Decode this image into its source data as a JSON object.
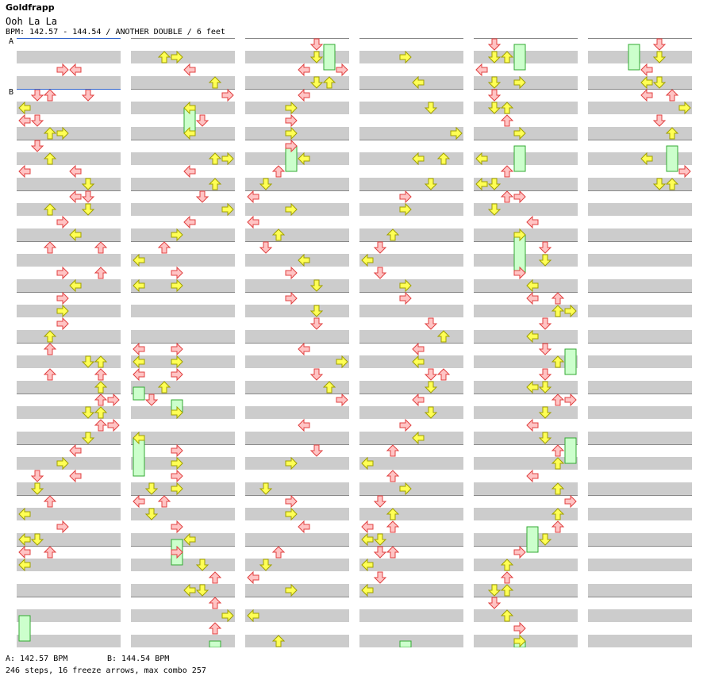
{
  "header": {
    "artist": "Goldfrapp",
    "song": "Ooh La La",
    "info": "BPM: 142.57 - 144.54 / ANOTHER DOUBLE / 6 feet"
  },
  "markers": {
    "a": "A",
    "b": "B"
  },
  "footer": {
    "bpm_a": "A: 142.57 BPM",
    "bpm_b": "B: 144.54 BPM",
    "stats": "246 steps, 16 freeze arrows, max combo 257"
  },
  "colors": {
    "note_red_fill": "#ffc4c4",
    "note_red_stroke": "#e04040",
    "note_yellow_fill": "#ffff55",
    "note_yellow_stroke": "#a0a000",
    "freeze_fill": "#ccffcc",
    "freeze_stroke": "#33aa33"
  },
  "chart": {
    "columns": 6,
    "rows_per_column": 48,
    "lanes": 8,
    "lane_dirs": [
      "left",
      "down",
      "up",
      "right",
      "left",
      "down",
      "up",
      "right"
    ],
    "notes": [
      [
        [
          2,
          3
        ],
        [
          2,
          4
        ],
        [
          4,
          2
        ],
        [
          4,
          5
        ],
        [
          4,
          1
        ],
        [
          5,
          0
        ],
        [
          6,
          0
        ],
        [
          6,
          1
        ],
        [
          7,
          2
        ],
        [
          7,
          3
        ],
        [
          8,
          1
        ],
        [
          9,
          2
        ],
        [
          10,
          4
        ],
        [
          10,
          0
        ],
        [
          11,
          5
        ],
        [
          11,
          5
        ],
        [
          12,
          5
        ],
        [
          12,
          4
        ],
        [
          13,
          5
        ],
        [
          13,
          2
        ],
        [
          14,
          3
        ],
        [
          15,
          4
        ],
        [
          16,
          2
        ],
        [
          16,
          6
        ],
        [
          18,
          3
        ],
        [
          18,
          6
        ],
        [
          19,
          4
        ],
        [
          20,
          3
        ],
        [
          21,
          3
        ],
        [
          22,
          3
        ],
        [
          23,
          2
        ],
        [
          24,
          2
        ],
        [
          25,
          5
        ],
        [
          25,
          6
        ],
        [
          26,
          2
        ],
        [
          26,
          6
        ],
        [
          27,
          6
        ],
        [
          28,
          7
        ],
        [
          28,
          6
        ],
        [
          29,
          5
        ],
        [
          29,
          6
        ],
        [
          30,
          7
        ],
        [
          30,
          6
        ],
        [
          31,
          5
        ],
        [
          32,
          4
        ],
        [
          33,
          3
        ],
        [
          34,
          4
        ],
        [
          34,
          1
        ],
        [
          35,
          1
        ],
        [
          36,
          2
        ],
        [
          37,
          0
        ],
        [
          38,
          3
        ],
        [
          39,
          0
        ],
        [
          39,
          1
        ],
        [
          40,
          0
        ],
        [
          40,
          2
        ],
        [
          41,
          0
        ]
      ],
      [
        [
          1,
          2
        ],
        [
          1,
          3
        ],
        [
          2,
          4
        ],
        [
          3,
          6
        ],
        [
          4,
          7
        ],
        [
          5,
          4
        ],
        [
          6,
          5
        ],
        [
          7,
          4
        ],
        [
          9,
          6
        ],
        [
          9,
          7
        ],
        [
          10,
          4
        ],
        [
          11,
          6
        ],
        [
          12,
          5
        ],
        [
          13,
          7
        ],
        [
          14,
          4
        ],
        [
          15,
          3
        ],
        [
          16,
          2
        ],
        [
          17,
          0
        ],
        [
          18,
          3
        ],
        [
          19,
          0
        ],
        [
          19,
          3
        ],
        [
          24,
          3
        ],
        [
          24,
          0
        ],
        [
          25,
          3
        ],
        [
          25,
          0
        ],
        [
          26,
          3
        ],
        [
          26,
          0
        ],
        [
          27,
          2
        ],
        [
          28,
          1
        ],
        [
          29,
          3
        ],
        [
          31,
          0
        ],
        [
          32,
          3
        ],
        [
          33,
          3
        ],
        [
          34,
          3
        ],
        [
          35,
          1
        ],
        [
          35,
          3
        ],
        [
          36,
          2
        ],
        [
          36,
          0
        ],
        [
          37,
          1
        ],
        [
          38,
          3
        ],
        [
          39,
          4
        ],
        [
          40,
          3
        ],
        [
          41,
          5
        ],
        [
          42,
          6
        ],
        [
          43,
          4
        ],
        [
          43,
          5
        ],
        [
          44,
          6
        ],
        [
          45,
          7
        ],
        [
          46,
          6
        ]
      ],
      [
        [
          0,
          5
        ],
        [
          1,
          5
        ],
        [
          2,
          4
        ],
        [
          2,
          7
        ],
        [
          3,
          5
        ],
        [
          3,
          6
        ],
        [
          4,
          4
        ],
        [
          5,
          3
        ],
        [
          6,
          3
        ],
        [
          7,
          3
        ],
        [
          8,
          3
        ],
        [
          9,
          4
        ],
        [
          10,
          2
        ],
        [
          11,
          1
        ],
        [
          12,
          0
        ],
        [
          13,
          3
        ],
        [
          14,
          0
        ],
        [
          15,
          2
        ],
        [
          16,
          1
        ],
        [
          17,
          4
        ],
        [
          18,
          3
        ],
        [
          19,
          5
        ],
        [
          20,
          3
        ],
        [
          21,
          5
        ],
        [
          22,
          5
        ],
        [
          24,
          4
        ],
        [
          25,
          7
        ],
        [
          26,
          5
        ],
        [
          27,
          6
        ],
        [
          28,
          7
        ],
        [
          30,
          4
        ],
        [
          32,
          5
        ],
        [
          33,
          3
        ],
        [
          35,
          1
        ],
        [
          36,
          3
        ],
        [
          37,
          3
        ],
        [
          38,
          4
        ],
        [
          40,
          2
        ],
        [
          41,
          1
        ],
        [
          42,
          0
        ],
        [
          43,
          3
        ],
        [
          45,
          0
        ],
        [
          47,
          2
        ]
      ],
      [
        [
          1,
          3
        ],
        [
          3,
          4
        ],
        [
          5,
          5
        ],
        [
          7,
          7
        ],
        [
          9,
          4
        ],
        [
          9,
          6
        ],
        [
          11,
          5
        ],
        [
          12,
          3
        ],
        [
          13,
          3
        ],
        [
          15,
          2
        ],
        [
          16,
          1
        ],
        [
          17,
          0
        ],
        [
          18,
          1
        ],
        [
          19,
          3
        ],
        [
          20,
          3
        ],
        [
          22,
          5
        ],
        [
          23,
          6
        ],
        [
          24,
          4
        ],
        [
          25,
          4
        ],
        [
          26,
          5
        ],
        [
          26,
          6
        ],
        [
          27,
          5
        ],
        [
          28,
          4
        ],
        [
          29,
          5
        ],
        [
          30,
          3
        ],
        [
          31,
          4
        ],
        [
          32,
          2
        ],
        [
          33,
          0
        ],
        [
          34,
          2
        ],
        [
          35,
          3
        ],
        [
          36,
          1
        ],
        [
          37,
          2
        ],
        [
          38,
          0
        ],
        [
          38,
          2
        ],
        [
          39,
          0
        ],
        [
          39,
          1
        ],
        [
          40,
          1
        ],
        [
          40,
          2
        ],
        [
          41,
          0
        ],
        [
          42,
          1
        ],
        [
          43,
          0
        ]
      ],
      [
        [
          0,
          1
        ],
        [
          1,
          1
        ],
        [
          1,
          2
        ],
        [
          2,
          0
        ],
        [
          3,
          1
        ],
        [
          3,
          3
        ],
        [
          4,
          1
        ],
        [
          5,
          1
        ],
        [
          5,
          2
        ],
        [
          6,
          2
        ],
        [
          7,
          3
        ],
        [
          9,
          0
        ],
        [
          10,
          2
        ],
        [
          11,
          0
        ],
        [
          11,
          1
        ],
        [
          12,
          2
        ],
        [
          12,
          3
        ],
        [
          13,
          1
        ],
        [
          14,
          4
        ],
        [
          15,
          3
        ],
        [
          16,
          5
        ],
        [
          17,
          5
        ],
        [
          18,
          3
        ],
        [
          19,
          4
        ],
        [
          20,
          4
        ],
        [
          20,
          6
        ],
        [
          21,
          6
        ],
        [
          21,
          7
        ],
        [
          22,
          5
        ],
        [
          23,
          4
        ],
        [
          24,
          5
        ],
        [
          25,
          6
        ],
        [
          26,
          5
        ],
        [
          27,
          4
        ],
        [
          27,
          5
        ],
        [
          28,
          6
        ],
        [
          28,
          7
        ],
        [
          29,
          5
        ],
        [
          30,
          4
        ],
        [
          31,
          5
        ],
        [
          32,
          6
        ],
        [
          33,
          6
        ],
        [
          34,
          4
        ],
        [
          35,
          6
        ],
        [
          36,
          7
        ],
        [
          37,
          6
        ],
        [
          38,
          6
        ],
        [
          39,
          5
        ],
        [
          40,
          3
        ],
        [
          41,
          2
        ],
        [
          42,
          2
        ],
        [
          43,
          1
        ],
        [
          43,
          2
        ],
        [
          44,
          1
        ],
        [
          45,
          2
        ],
        [
          46,
          3
        ],
        [
          47,
          3
        ]
      ],
      [
        [
          0,
          5
        ],
        [
          1,
          5
        ],
        [
          2,
          4
        ],
        [
          3,
          4
        ],
        [
          3,
          5
        ],
        [
          4,
          4
        ],
        [
          4,
          6
        ],
        [
          5,
          7
        ],
        [
          6,
          5
        ],
        [
          7,
          6
        ],
        [
          9,
          4
        ],
        [
          10,
          7
        ],
        [
          11,
          5
        ],
        [
          11,
          6
        ]
      ]
    ],
    "freezes": [
      [
        [
          45,
          0,
          47
        ]
      ],
      [
        [
          5,
          4,
          7
        ],
        [
          27,
          0,
          28
        ],
        [
          31,
          0,
          34
        ],
        [
          28,
          3,
          29
        ],
        [
          39,
          3,
          41
        ],
        [
          47,
          6,
          48
        ]
      ],
      [
        [
          0,
          6,
          2
        ],
        [
          8,
          3,
          10
        ]
      ],
      [
        [
          47,
          3,
          48
        ]
      ],
      [
        [
          0,
          3,
          2
        ],
        [
          8,
          3,
          10
        ],
        [
          15,
          3,
          18
        ],
        [
          24,
          7,
          26
        ],
        [
          31,
          7,
          33
        ],
        [
          38,
          4,
          40
        ],
        [
          47,
          3,
          48
        ]
      ],
      [
        [
          0,
          3,
          2
        ],
        [
          8,
          6,
          10
        ]
      ]
    ]
  }
}
